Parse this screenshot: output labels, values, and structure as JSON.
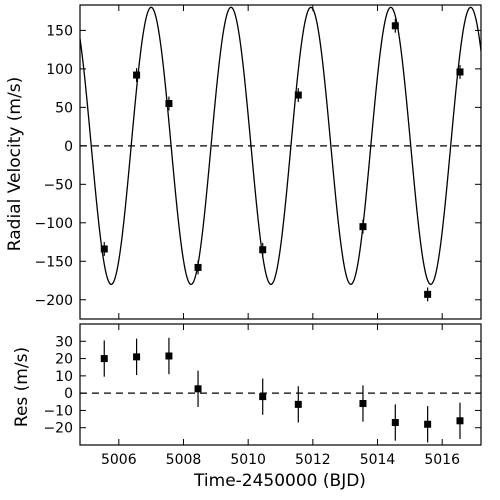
{
  "chart_data": [
    {
      "type": "scatter",
      "panel": "top",
      "title": "",
      "xlabel": "",
      "ylabel": "Radial Velocity (m/s)",
      "xlim": [
        5004.8,
        5017.2
      ],
      "ylim": [
        -225,
        183
      ],
      "xticks": [
        5006,
        5008,
        5010,
        5012,
        5014,
        5016
      ],
      "yticks": [
        -200,
        -150,
        -100,
        -50,
        0,
        50,
        100,
        150
      ],
      "grid": false,
      "reference_line": 0,
      "model": {
        "amplitude": 180,
        "period": 2.47,
        "phase_ref_x": 5007.0
      },
      "points": [
        {
          "x": 5005.55,
          "y": -134,
          "err": 9
        },
        {
          "x": 5006.55,
          "y": 92,
          "err": 9
        },
        {
          "x": 5007.55,
          "y": 55,
          "err": 9
        },
        {
          "x": 5008.45,
          "y": -158,
          "err": 9
        },
        {
          "x": 5010.45,
          "y": -135,
          "err": 9
        },
        {
          "x": 5011.55,
          "y": 66,
          "err": 9
        },
        {
          "x": 5013.55,
          "y": -105,
          "err": 9
        },
        {
          "x": 5014.55,
          "y": 156,
          "err": 9
        },
        {
          "x": 5015.55,
          "y": -193,
          "err": 9
        },
        {
          "x": 5016.55,
          "y": 96,
          "err": 9
        }
      ]
    },
    {
      "type": "scatter",
      "panel": "bottom",
      "title": "",
      "xlabel": "Time-2450000 (BJD)",
      "ylabel": "Res (m/s)",
      "xlim": [
        5004.8,
        5017.2
      ],
      "ylim": [
        -30,
        40
      ],
      "xticks": [
        5006,
        5008,
        5010,
        5012,
        5014,
        5016
      ],
      "yticks": [
        -20,
        -10,
        0,
        10,
        20,
        30
      ],
      "grid": false,
      "reference_line": 0,
      "points": [
        {
          "x": 5005.55,
          "y": 20,
          "err": 10.5
        },
        {
          "x": 5006.55,
          "y": 21,
          "err": 10.5
        },
        {
          "x": 5007.55,
          "y": 21.5,
          "err": 10.5
        },
        {
          "x": 5008.45,
          "y": 2.5,
          "err": 10.5
        },
        {
          "x": 5010.45,
          "y": -2,
          "err": 10.5
        },
        {
          "x": 5011.55,
          "y": -6.5,
          "err": 10.5
        },
        {
          "x": 5013.55,
          "y": -6,
          "err": 10.5
        },
        {
          "x": 5014.55,
          "y": -17,
          "err": 10.5
        },
        {
          "x": 5015.55,
          "y": -18,
          "err": 10.5
        },
        {
          "x": 5016.55,
          "y": -16,
          "err": 10.5
        }
      ]
    }
  ]
}
